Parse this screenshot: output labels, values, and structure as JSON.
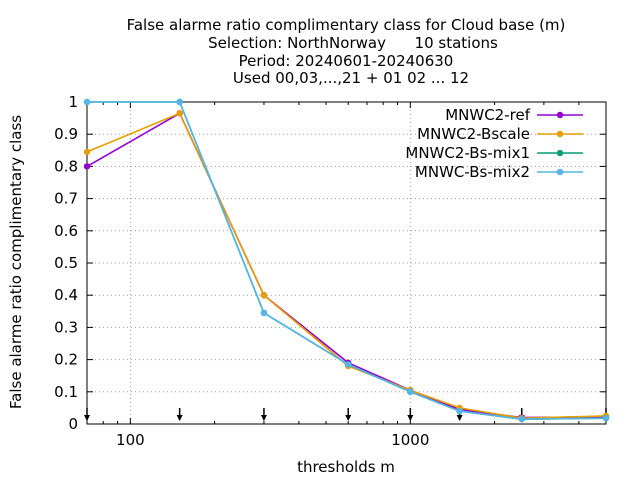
{
  "chart_data": {
    "type": "line",
    "title_lines": [
      "False alarme ratio complimentary class  for Cloud base (m)",
      "Selection: NorthNorway      10 stations",
      "Period: 20240601-20240630",
      "Used 00,03,...,21 + 01 02 ... 12"
    ],
    "xlabel": "thresholds m",
    "ylabel": "False alarme ratio complimentary class",
    "x_scale": "log",
    "xlim": [
      70,
      5000
    ],
    "ylim": [
      0,
      1
    ],
    "x_ticks": [
      100,
      1000
    ],
    "x_tick_labels": [
      "100",
      "1000"
    ],
    "y_ticks": [
      0,
      0.1,
      0.2,
      0.3,
      0.4,
      0.5,
      0.6,
      0.7,
      0.8,
      0.9,
      1
    ],
    "y_tick_labels": [
      "0",
      "0.1",
      "0.2",
      "0.3",
      "0.4",
      "0.5",
      "0.6",
      "0.7",
      "0.8",
      "0.9",
      "1"
    ],
    "grid": true,
    "legend_position": "top-right",
    "threshold_markers": [
      70,
      150,
      300,
      600,
      1000,
      1500,
      2500,
      5000
    ],
    "x": [
      70,
      150,
      300,
      600,
      1000,
      1500,
      2500,
      5000
    ],
    "series": [
      {
        "name": "MNWC2-ref",
        "color": "#9400d3",
        "values": [
          0.8,
          0.965,
          0.4,
          0.19,
          0.105,
          0.045,
          0.02,
          0.022
        ]
      },
      {
        "name": "MNWC2-Bscale",
        "color": "#e69f00",
        "values": [
          0.845,
          0.965,
          0.4,
          0.18,
          0.105,
          0.05,
          0.018,
          0.025
        ]
      },
      {
        "name": "MNWC2-Bs-mix1",
        "color": "#009e73",
        "values": [
          1.0,
          1.0,
          0.345,
          0.185,
          0.1,
          0.04,
          0.015,
          0.018
        ]
      },
      {
        "name": "MNWC-Bs-mix2",
        "color": "#56b4e9",
        "values": [
          1.0,
          1.0,
          0.345,
          0.185,
          0.1,
          0.04,
          0.015,
          0.018
        ]
      }
    ]
  }
}
